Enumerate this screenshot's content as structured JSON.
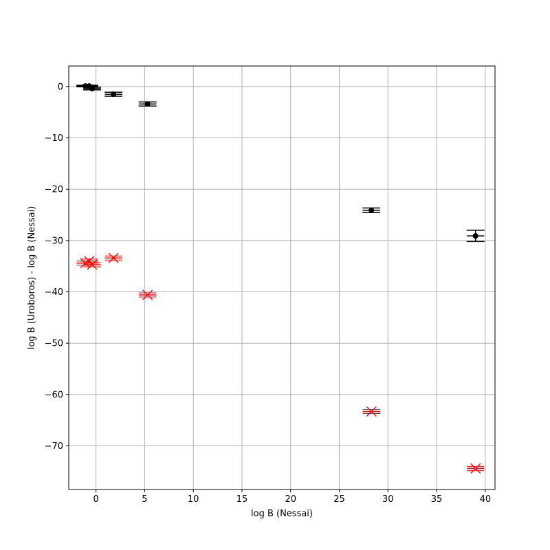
{
  "chart_data": {
    "type": "scatter",
    "title": "",
    "xlabel": "log B (Nessai)",
    "ylabel": "log B (Uroboros) - log B (Nessai)",
    "xlim": [
      -2.8,
      41.0
    ],
    "ylim": [
      -78.5,
      4.0
    ],
    "xticks": [
      0,
      5,
      10,
      15,
      20,
      25,
      30,
      35,
      40
    ],
    "yticks": [
      0,
      -10,
      -20,
      -30,
      -40,
      -50,
      -60,
      -70
    ],
    "xtick_labels": [
      "0",
      "5",
      "10",
      "15",
      "20",
      "25",
      "30",
      "35",
      "40"
    ],
    "ytick_labels": [
      "0",
      "−10",
      "−20",
      "−30",
      "−40",
      "−50",
      "−60",
      "−70"
    ],
    "grid": true,
    "legend": "none",
    "colors": {
      "black_series": "#000000",
      "red_series": "#ff0000",
      "grid": "#b0b0b0"
    },
    "series": [
      {
        "marker": "circle",
        "color": "#000000",
        "points": [
          {
            "x": -1.1,
            "y": 0.1,
            "xerr": 0.9,
            "yerr": 0.15
          },
          {
            "x": -0.7,
            "y": 0.1,
            "xerr": 0.9,
            "yerr": 0.15
          },
          {
            "x": -0.4,
            "y": -0.4,
            "xerr": 0.9,
            "yerr": 0.25
          },
          {
            "x": 1.8,
            "y": -1.5,
            "xerr": 0.9,
            "yerr": 0.4
          },
          {
            "x": 5.3,
            "y": -3.4,
            "xerr": 0.9,
            "yerr": 0.4
          },
          {
            "x": 28.3,
            "y": -24.1,
            "xerr": 0.9,
            "yerr": 0.45
          },
          {
            "x": 39.0,
            "y": -29.1,
            "xerr": 0.9,
            "yerr": 1.1
          }
        ]
      },
      {
        "marker": "x",
        "color": "#ff0000",
        "points": [
          {
            "x": -1.1,
            "y": -34.4,
            "xerr": 0.9
          },
          {
            "x": -0.7,
            "y": -34.0,
            "xerr": 0.9
          },
          {
            "x": -0.4,
            "y": -34.7,
            "xerr": 0.9
          },
          {
            "x": 1.8,
            "y": -33.4,
            "xerr": 0.9
          },
          {
            "x": 5.3,
            "y": -40.6,
            "xerr": 0.9
          },
          {
            "x": 28.3,
            "y": -63.3,
            "xerr": 0.9
          },
          {
            "x": 39.0,
            "y": -74.4,
            "xerr": 0.9
          }
        ]
      }
    ]
  }
}
